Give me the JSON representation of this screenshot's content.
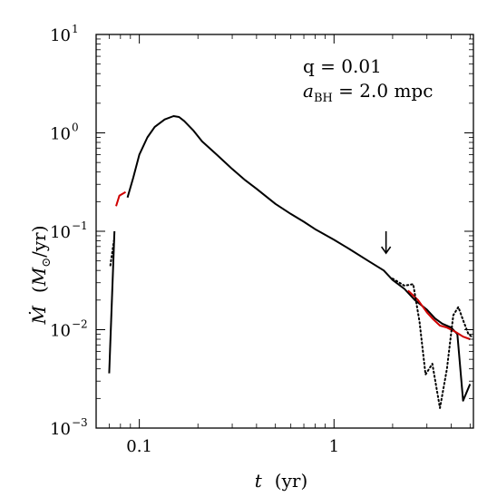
{
  "chart_data": {
    "type": "line",
    "xscale": "log",
    "yscale": "log",
    "xlim": [
      0.06,
      5.2
    ],
    "ylim": [
      0.001,
      10
    ],
    "x_ticks": [
      {
        "value": 0.1,
        "label": "0.1"
      },
      {
        "value": 1,
        "label": "1"
      }
    ],
    "y_ticks": [
      {
        "value": 0.001,
        "base": "10",
        "exp": "−3"
      },
      {
        "value": 0.01,
        "base": "10",
        "exp": "−2"
      },
      {
        "value": 0.1,
        "base": "10",
        "exp": "−1"
      },
      {
        "value": 1,
        "base": "10",
        "exp": "0"
      },
      {
        "value": 10,
        "base": "10",
        "exp": "1"
      }
    ],
    "xlabel": {
      "symbol": "t",
      "unit": "(yr)"
    },
    "ylabel": {
      "symbol": "Ṁ",
      "unit_open": "(",
      "unit_m": "M",
      "unit_sub": "⊙",
      "unit_rest": "/yr)"
    },
    "annotations": [
      {
        "id": "q",
        "text": "q = 0.01"
      },
      {
        "id": "abh",
        "sym": "a",
        "sub": "BH",
        "rest": " = 2.0 mpc"
      }
    ],
    "arrow": {
      "x": 1.85,
      "y_from": 0.1,
      "y_to": 0.06
    },
    "series": [
      {
        "style": "solid",
        "color": "#000000",
        "segments": [
          [
            [
              0.07,
              0.0036
            ],
            [
              0.0745,
              0.1
            ]
          ],
          [
            [
              0.087,
              0.22
            ],
            [
              0.093,
              0.35
            ],
            [
              0.1,
              0.6
            ],
            [
              0.11,
              0.9
            ],
            [
              0.12,
              1.15
            ],
            [
              0.135,
              1.37
            ],
            [
              0.15,
              1.48
            ],
            [
              0.16,
              1.45
            ],
            [
              0.17,
              1.32
            ],
            [
              0.19,
              1.05
            ],
            [
              0.21,
              0.82
            ],
            [
              0.25,
              0.6
            ],
            [
              0.3,
              0.43
            ],
            [
              0.35,
              0.33
            ],
            [
              0.4,
              0.27
            ],
            [
              0.5,
              0.19
            ],
            [
              0.6,
              0.15
            ],
            [
              0.7,
              0.125
            ],
            [
              0.8,
              0.105
            ],
            [
              1.0,
              0.082
            ],
            [
              1.2,
              0.066
            ],
            [
              1.5,
              0.05
            ],
            [
              1.8,
              0.04
            ],
            [
              2.0,
              0.032
            ],
            [
              2.3,
              0.026
            ],
            [
              2.6,
              0.02
            ],
            [
              3.0,
              0.016
            ],
            [
              3.3,
              0.013
            ],
            [
              3.6,
              0.0115
            ],
            [
              4.0,
              0.0105
            ],
            [
              4.3,
              0.009
            ],
            [
              4.6,
              0.0019
            ],
            [
              5.0,
              0.0028
            ]
          ]
        ]
      },
      {
        "style": "solid",
        "color": "#d00000",
        "segments": [
          [
            [
              0.076,
              0.18
            ],
            [
              0.079,
              0.23
            ],
            [
              0.085,
              0.25
            ]
          ],
          [
            [
              2.4,
              0.025
            ],
            [
              2.7,
              0.02
            ],
            [
              3.0,
              0.015
            ],
            [
              3.2,
              0.013
            ],
            [
              3.5,
              0.011
            ],
            [
              3.8,
              0.0105
            ],
            [
              4.2,
              0.0095
            ],
            [
              4.6,
              0.0085
            ],
            [
              5.0,
              0.008
            ]
          ]
        ]
      },
      {
        "style": "dotted",
        "color": "#000000",
        "segments": [
          [
            [
              0.071,
              0.045
            ],
            [
              0.074,
              0.08
            ]
          ],
          [
            [
              2.0,
              0.033
            ],
            [
              2.3,
              0.028
            ],
            [
              2.55,
              0.029
            ],
            [
              2.75,
              0.012
            ],
            [
              2.95,
              0.0035
            ],
            [
              3.2,
              0.0045
            ],
            [
              3.5,
              0.0016
            ],
            [
              3.8,
              0.004
            ],
            [
              4.1,
              0.014
            ],
            [
              4.35,
              0.017
            ],
            [
              4.6,
              0.0125
            ],
            [
              4.9,
              0.009
            ],
            [
              5.1,
              0.0085
            ]
          ]
        ]
      }
    ]
  }
}
